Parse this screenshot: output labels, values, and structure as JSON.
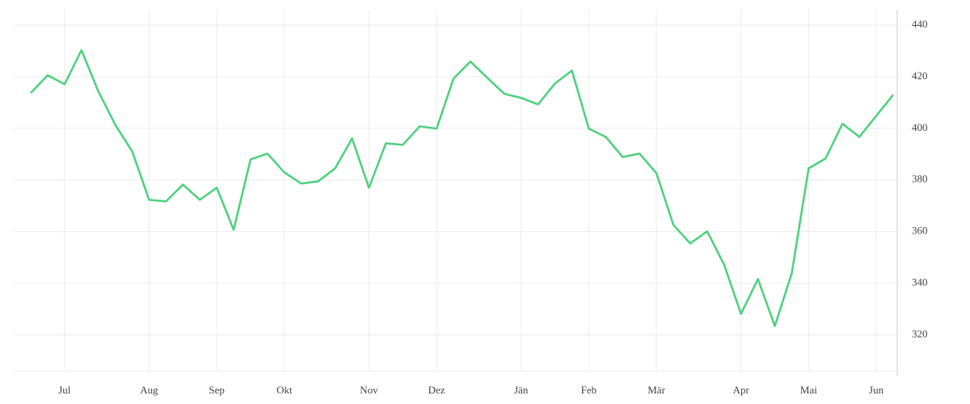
{
  "chart_data": {
    "type": "line",
    "categories": [
      null,
      null,
      "Jul",
      null,
      null,
      null,
      null,
      "Aug",
      null,
      null,
      null,
      "Sep",
      null,
      null,
      null,
      "Okt",
      null,
      null,
      null,
      null,
      "Nov",
      null,
      null,
      null,
      "Dez",
      null,
      null,
      null,
      null,
      "Jän",
      null,
      null,
      null,
      "Feb",
      null,
      null,
      null,
      "Mär",
      null,
      null,
      null,
      null,
      "Apr",
      null,
      null,
      null,
      "Mai",
      null,
      null,
      null,
      "Jun",
      null
    ],
    "series": [
      {
        "name": null,
        "color": "#4cd07d",
        "values": [
          413.7,
          420.6,
          417.1,
          430.3,
          414.3,
          401.4,
          391.1,
          372.3,
          371.7,
          378.2,
          372.3,
          377.0,
          360.7,
          388.0,
          390.2,
          382.9,
          378.6,
          379.5,
          384.5,
          396.1,
          377.0,
          394.2,
          393.6,
          400.8,
          399.9,
          419.3,
          425.9,
          419.6,
          413.4,
          411.8,
          409.3,
          417.4,
          422.4,
          399.9,
          396.7,
          388.9,
          390.2,
          382.6,
          362.6,
          355.4,
          360.1,
          347.2,
          328.1,
          341.6,
          323.4,
          343.8,
          384.5,
          388.3,
          401.8,
          396.7,
          404.9,
          413.0
        ]
      }
    ],
    "ylim": [
      306,
      446
    ],
    "yticks": [
      320,
      340,
      360,
      380,
      400,
      420,
      440
    ],
    "grid": true,
    "yaxis_side": "right"
  }
}
